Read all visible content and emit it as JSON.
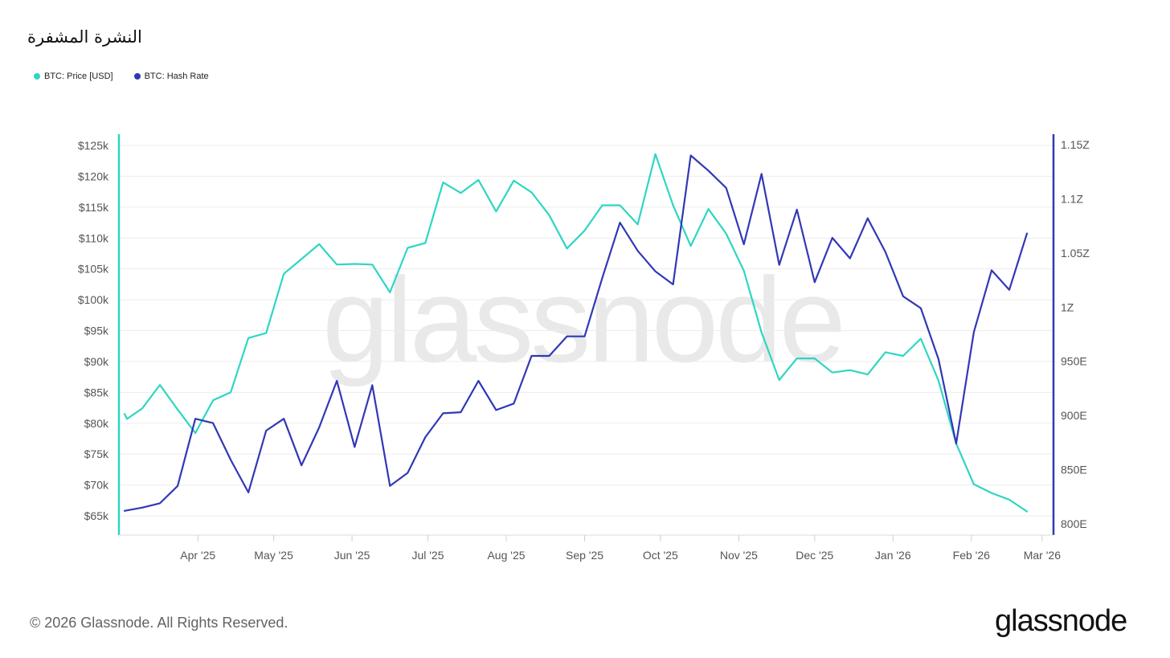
{
  "header": {
    "title": "النشرة المشفرة"
  },
  "footer": {
    "copyright": "© 2026 Glassnode. All Rights Reserved.",
    "logo_text": "glassnode"
  },
  "watermark": "glassnode",
  "colors": {
    "price": "#2ed6c3",
    "hash": "#3138b6",
    "grid": "#ececec"
  },
  "chart_data": {
    "type": "line",
    "title": "النشرة المشفرة",
    "legend_placement": "top-left",
    "grid": true,
    "x_ticks": [
      "Apr '25",
      "May '25",
      "Jun '25",
      "Jul '25",
      "Aug '25",
      "Sep '25",
      "Oct '25",
      "Nov '25",
      "Dec '25",
      "Jan '26",
      "Feb '26",
      "Mar '26"
    ],
    "x_range": [
      "2025-03-03",
      "2026-03-01"
    ],
    "y_left": {
      "ticks": [
        "$65k",
        "$70k",
        "$75k",
        "$80k",
        "$85k",
        "$90k",
        "$95k",
        "$100k",
        "$105k",
        "$110k",
        "$115k",
        "$120k",
        "$125k"
      ],
      "range": [
        65000,
        125000
      ]
    },
    "y_right": {
      "ticks": [
        "800E",
        "850E",
        "900E",
        "950E",
        "1Z",
        "1.05Z",
        "1.1Z",
        "1.15Z"
      ],
      "range": [
        800,
        1150
      ],
      "unit_note": "E = exa, Z = zetta"
    },
    "series": [
      {
        "name": "BTC: Price [USD]",
        "axis": "left",
        "points": [
          [
            "2025-03-03",
            81500
          ],
          [
            "2025-03-04",
            80700
          ],
          [
            "2025-03-10",
            82400
          ],
          [
            "2025-03-17",
            86200
          ],
          [
            "2025-03-24",
            82200
          ],
          [
            "2025-03-31",
            78400
          ],
          [
            "2025-04-07",
            83700
          ],
          [
            "2025-04-14",
            85000
          ],
          [
            "2025-04-21",
            93800
          ],
          [
            "2025-04-28",
            94600
          ],
          [
            "2025-05-05",
            104200
          ],
          [
            "2025-05-12",
            106600
          ],
          [
            "2025-05-19",
            109000
          ],
          [
            "2025-05-26",
            105700
          ],
          [
            "2025-06-02",
            105800
          ],
          [
            "2025-06-09",
            105700
          ],
          [
            "2025-06-16",
            101200
          ],
          [
            "2025-06-23",
            108400
          ],
          [
            "2025-06-30",
            109200
          ],
          [
            "2025-07-07",
            119000
          ],
          [
            "2025-07-14",
            117300
          ],
          [
            "2025-07-21",
            119400
          ],
          [
            "2025-07-28",
            114300
          ],
          [
            "2025-08-04",
            119300
          ],
          [
            "2025-08-11",
            117400
          ],
          [
            "2025-08-18",
            113700
          ],
          [
            "2025-08-25",
            108300
          ],
          [
            "2025-09-01",
            111200
          ],
          [
            "2025-09-08",
            115300
          ],
          [
            "2025-09-15",
            115300
          ],
          [
            "2025-09-22",
            112200
          ],
          [
            "2025-09-29",
            123600
          ],
          [
            "2025-10-06",
            115300
          ],
          [
            "2025-10-13",
            108700
          ],
          [
            "2025-10-20",
            114700
          ],
          [
            "2025-10-27",
            110700
          ],
          [
            "2025-11-03",
            104700
          ],
          [
            "2025-11-10",
            94700
          ],
          [
            "2025-11-17",
            87000
          ],
          [
            "2025-11-24",
            90500
          ],
          [
            "2025-12-01",
            90500
          ],
          [
            "2025-12-08",
            88200
          ],
          [
            "2025-12-15",
            88600
          ],
          [
            "2025-12-22",
            87900
          ],
          [
            "2025-12-29",
            91500
          ],
          [
            "2026-01-05",
            90900
          ],
          [
            "2026-01-12",
            93700
          ],
          [
            "2026-01-19",
            86900
          ],
          [
            "2026-01-26",
            76700
          ],
          [
            "2026-02-02",
            70100
          ],
          [
            "2026-02-09",
            68700
          ],
          [
            "2026-02-16",
            67600
          ],
          [
            "2026-02-23",
            65700
          ]
        ]
      },
      {
        "name": "BTC: Hash Rate",
        "axis": "right",
        "points": [
          [
            "2025-03-03",
            812
          ],
          [
            "2025-03-10",
            815
          ],
          [
            "2025-03-17",
            819
          ],
          [
            "2025-03-24",
            835
          ],
          [
            "2025-03-31",
            897
          ],
          [
            "2025-04-07",
            893
          ],
          [
            "2025-04-14",
            859
          ],
          [
            "2025-04-21",
            829
          ],
          [
            "2025-04-28",
            886
          ],
          [
            "2025-05-05",
            897
          ],
          [
            "2025-05-12",
            854
          ],
          [
            "2025-05-19",
            889
          ],
          [
            "2025-05-26",
            932
          ],
          [
            "2025-06-02",
            871
          ],
          [
            "2025-06-09",
            928
          ],
          [
            "2025-06-16",
            835
          ],
          [
            "2025-06-23",
            847
          ],
          [
            "2025-06-30",
            880
          ],
          [
            "2025-07-07",
            902
          ],
          [
            "2025-07-14",
            903
          ],
          [
            "2025-07-21",
            932
          ],
          [
            "2025-07-28",
            905
          ],
          [
            "2025-08-04",
            911
          ],
          [
            "2025-08-11",
            955
          ],
          [
            "2025-08-18",
            955
          ],
          [
            "2025-08-25",
            973
          ],
          [
            "2025-09-01",
            973
          ],
          [
            "2025-09-08",
            1027
          ],
          [
            "2025-09-15",
            1078
          ],
          [
            "2025-09-22",
            1052
          ],
          [
            "2025-09-29",
            1033
          ],
          [
            "2025-10-06",
            1021
          ],
          [
            "2025-10-13",
            1140
          ],
          [
            "2025-10-20",
            1126
          ],
          [
            "2025-10-27",
            1110
          ],
          [
            "2025-11-03",
            1058
          ],
          [
            "2025-11-10",
            1123
          ],
          [
            "2025-11-17",
            1039
          ],
          [
            "2025-11-24",
            1090
          ],
          [
            "2025-12-01",
            1023
          ],
          [
            "2025-12-08",
            1064
          ],
          [
            "2025-12-15",
            1045
          ],
          [
            "2025-12-22",
            1082
          ],
          [
            "2025-12-29",
            1051
          ],
          [
            "2026-01-05",
            1010
          ],
          [
            "2026-01-12",
            999
          ],
          [
            "2026-01-19",
            952
          ],
          [
            "2026-01-26",
            874
          ],
          [
            "2026-02-02",
            977
          ],
          [
            "2026-02-09",
            1034
          ],
          [
            "2026-02-16",
            1016
          ],
          [
            "2026-02-23",
            1068
          ]
        ]
      }
    ]
  }
}
